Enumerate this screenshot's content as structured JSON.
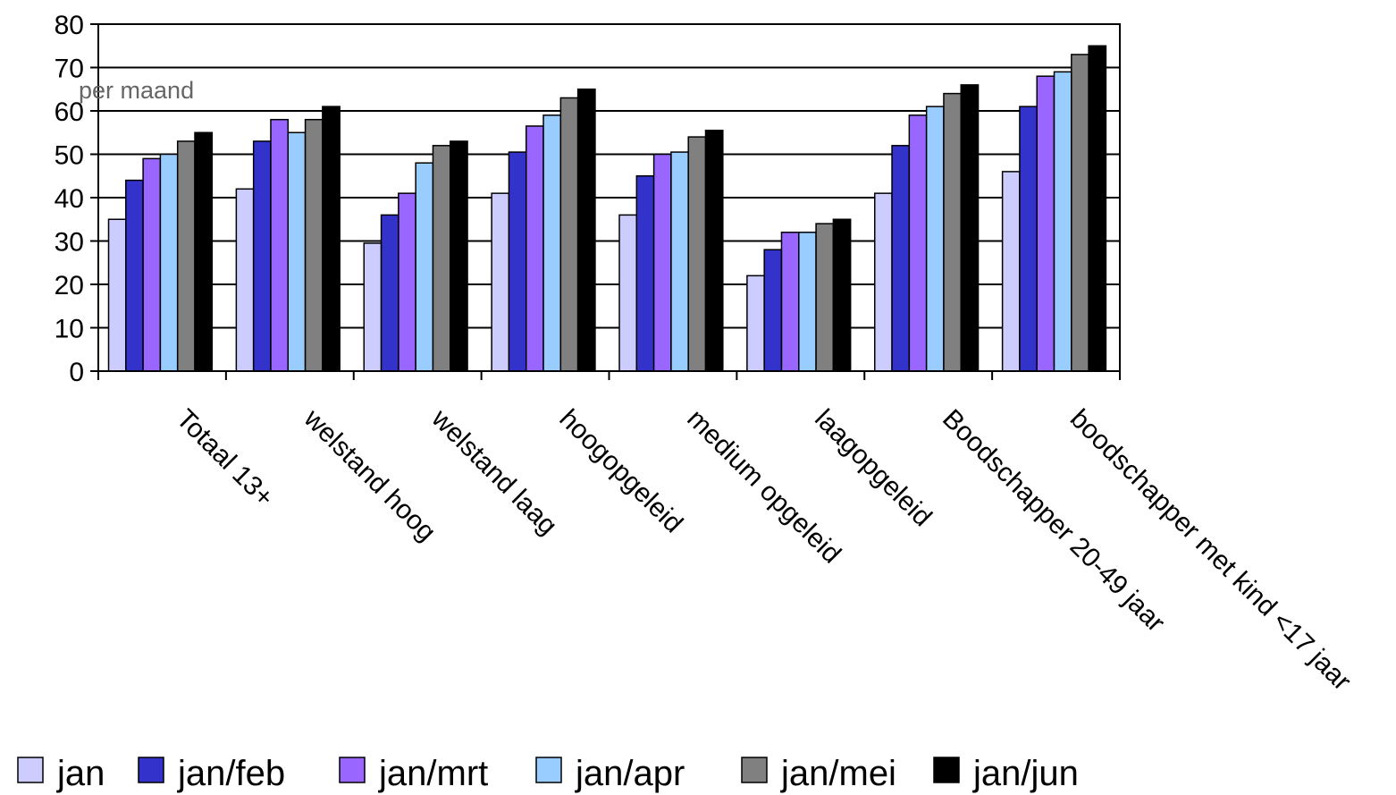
{
  "chart_data": {
    "type": "bar",
    "title": "",
    "xlabel": "",
    "ylabel": "",
    "annotation": "per maand",
    "ylim": [
      0,
      80
    ],
    "yticks": [
      0,
      10,
      20,
      30,
      40,
      50,
      60,
      70,
      80
    ],
    "grid": "horizontal",
    "legend_position": "bottom",
    "categories": [
      "Totaal 13+",
      "welstand hoog",
      "welstand laag",
      "hoogopgeleid",
      "medium opgeleid",
      "laagopgeleid",
      "Boodschapper 20-49 jaar",
      "boodschapper met kind <17 jaar"
    ],
    "series": [
      {
        "name": "jan",
        "color": "#ccccff",
        "values": [
          35,
          42,
          29.5,
          41,
          36,
          22,
          41,
          46
        ]
      },
      {
        "name": "jan/feb",
        "color": "#3333cc",
        "values": [
          44,
          53,
          36,
          50.5,
          45,
          28,
          52,
          61
        ]
      },
      {
        "name": "jan/mrt",
        "color": "#9966ff",
        "values": [
          49,
          58,
          41,
          56.5,
          50,
          32,
          59,
          68
        ]
      },
      {
        "name": "jan/apr",
        "color": "#99ccff",
        "values": [
          50,
          55,
          48,
          59,
          50.5,
          32,
          61,
          69
        ]
      },
      {
        "name": "jan/mei",
        "color": "#808080",
        "values": [
          53,
          58,
          52,
          63,
          54,
          34,
          64,
          73
        ]
      },
      {
        "name": "jan/jun",
        "color": "#000000",
        "values": [
          55,
          61,
          53,
          65,
          55.5,
          35,
          66,
          75
        ]
      }
    ]
  }
}
